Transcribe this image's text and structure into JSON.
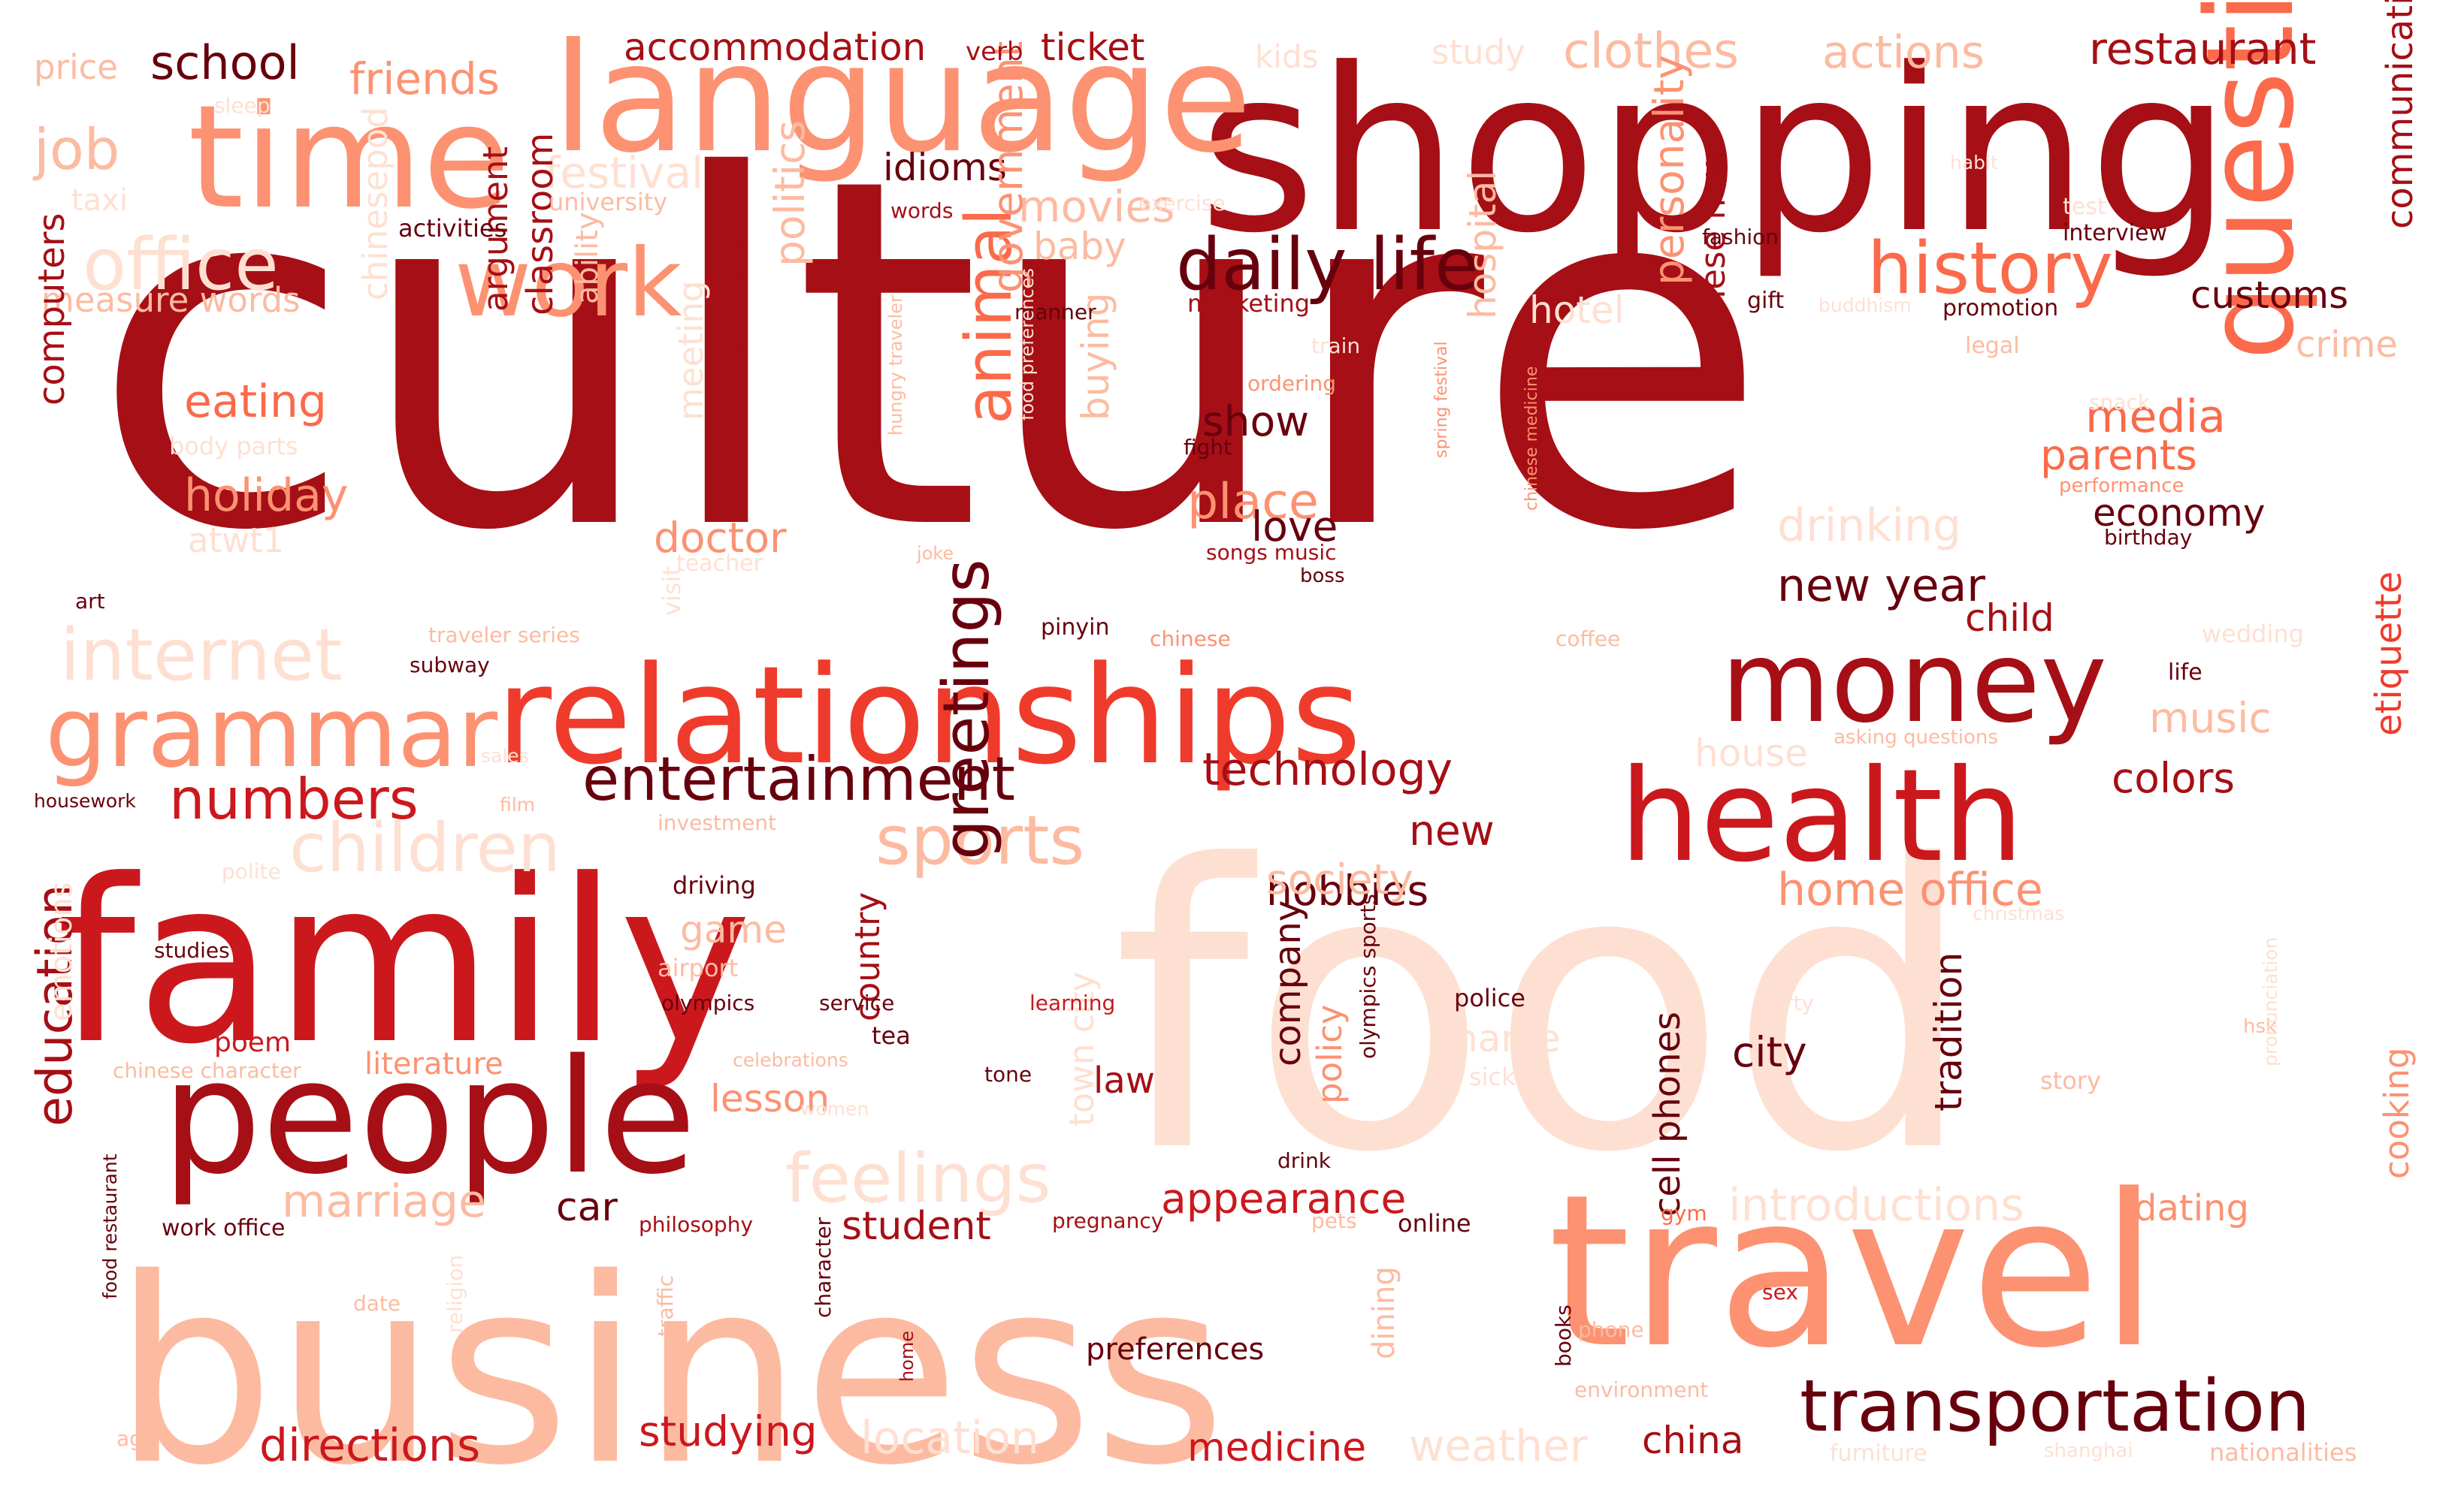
{
  "word_cloud": {
    "palette": {
      "darkest": "#67000d",
      "dark": "#a50f15",
      "strong": "#cb181d",
      "medium": "#ef3b2c",
      "salmon": "#fb6a4a",
      "light": "#fc9272",
      "pale": "#fcbba1",
      "faint": "#fee0d2"
    },
    "words": [
      "culture",
      "food",
      "business",
      "shopping",
      "travel",
      "family",
      "relationships",
      "time",
      "language",
      "people",
      "questions",
      "health",
      "money",
      "grammar",
      "work",
      "daily life",
      "history",
      "transportation",
      "entertainment",
      "office",
      "internet",
      "sports",
      "children",
      "feelings",
      "greetings",
      "animal",
      "numbers",
      "education",
      "technology",
      "restaurant",
      "clothes",
      "actions",
      "school",
      "friends",
      "accommodation",
      "ticket",
      "idioms",
      "festival",
      "movies",
      "baby",
      "customs",
      "communication",
      "crime",
      "media",
      "parents",
      "drinking",
      "economy",
      "new year",
      "child",
      "music",
      "colors",
      "etiquette",
      "hotel",
      "job",
      "price",
      "measure words",
      "computers",
      "eating",
      "holiday",
      "politics",
      "government",
      "buying",
      "place",
      "show",
      "love",
      "hospital",
      "personality",
      "chinese new",
      "classroom",
      "argument",
      "ability",
      "chinesepod",
      "meeting",
      "doctor",
      "directions",
      "studying",
      "location",
      "medicine",
      "weather",
      "china",
      "appearance",
      "student",
      "car",
      "marriage",
      "introductions",
      "dating",
      "cooking",
      "hobbies",
      "home office",
      "society",
      "new",
      "city",
      "law",
      "lesson",
      "company",
      "policy",
      "tradition",
      "cell phones",
      "town city",
      "name",
      "country",
      "game",
      "literature",
      "poem",
      "preferences",
      "study",
      "kids",
      "verb",
      "taxi",
      "university",
      "activities",
      "words",
      "exercise",
      "habit",
      "interview",
      "fashion",
      "marketing",
      "manner",
      "children family",
      "hungry traveler",
      "spring festival",
      "chinese medicine",
      "gift",
      "promotion",
      "buddhism",
      "legal",
      "train",
      "ordering",
      "fight",
      "snack",
      "performance",
      "teacher",
      "songs music",
      "boss",
      "birthday",
      "joke",
      "body parts",
      "atwt1",
      "art",
      "traveler series",
      "subway",
      "pinyin",
      "chinese",
      "coffee",
      "wedding",
      "life",
      "asking questions",
      "visit",
      "house",
      "housework",
      "sales",
      "film",
      "investment",
      "polite",
      "emotions",
      "driving",
      "airport",
      "olympics",
      "service",
      "learning",
      "olympics sports",
      "police",
      "party",
      "hsk",
      "studies",
      "tea",
      "chinese character",
      "celebrations",
      "tone",
      "sick",
      "story",
      "pronunciation",
      "tv",
      "women",
      "drink",
      "pets",
      "online",
      "gym",
      "work office",
      "food restaurant",
      "philosophy",
      "pregnancy",
      "character",
      "traffic",
      "religion",
      "date",
      "home",
      "books",
      "phone",
      "sex",
      "environment",
      "age",
      "furniture",
      "shanghai",
      "nationalities",
      "christmas",
      "sleep",
      "food preferences",
      "test",
      "dining"
    ]
  }
}
